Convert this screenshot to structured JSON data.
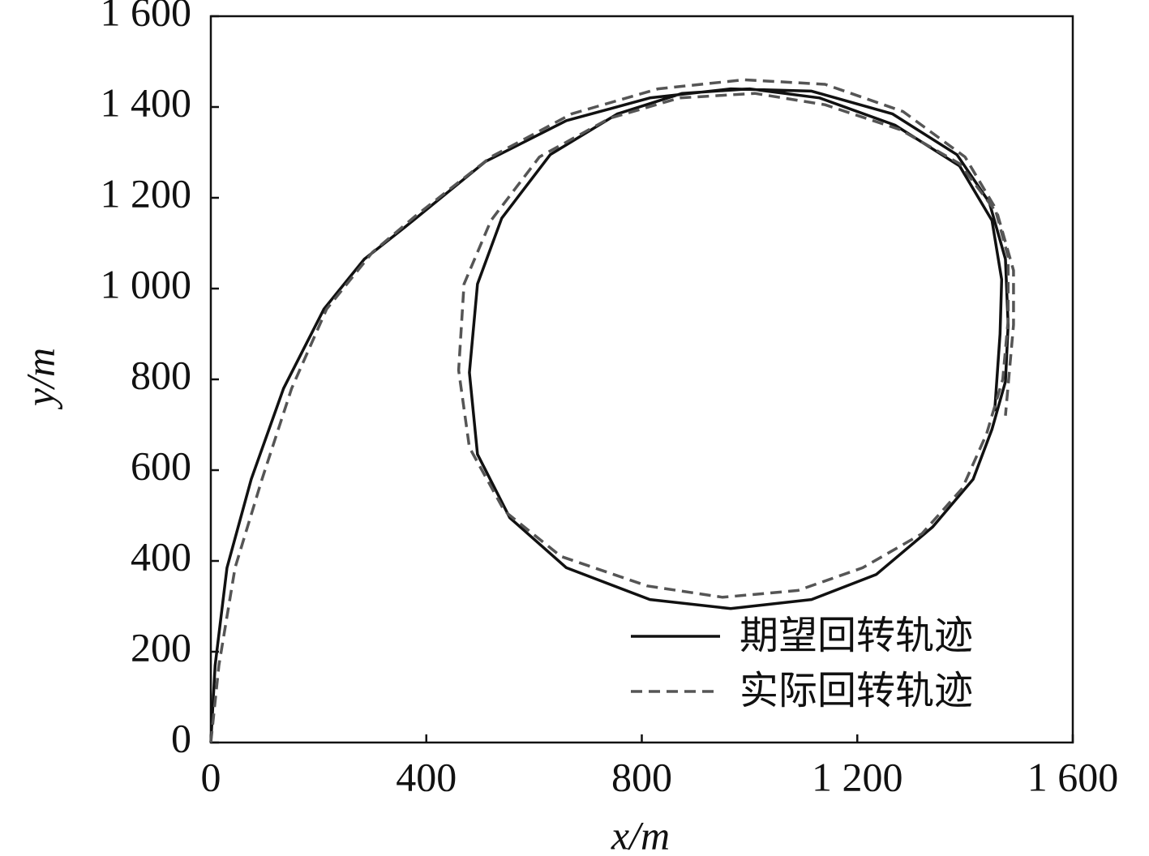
{
  "chart_data": {
    "type": "line",
    "x_label": "x/m",
    "y_label": "y/m",
    "xlim": [
      0,
      1600
    ],
    "ylim": [
      0,
      1600
    ],
    "xticks": [
      0,
      400,
      800,
      {
        "value": 1200,
        "label": "1 200"
      },
      {
        "value": 1600,
        "label": "1 600"
      }
    ],
    "yticks": [
      0,
      200,
      400,
      600,
      800,
      {
        "value": 1000,
        "label": "1 000"
      },
      {
        "value": 1200,
        "label": "1 200"
      },
      {
        "value": 1400,
        "label": "1 400"
      },
      {
        "value": 1600,
        "label": "1 600"
      }
    ],
    "legend": "lower-right",
    "series": [
      {
        "name": "期望回转轨迹",
        "color": "#111111",
        "dash": "solid",
        "x": [
          0,
          8,
          30,
          75,
          135,
          210,
          285,
          360,
          510,
          660,
          815,
          965,
          1115,
          1265,
          1385,
          1445,
          1475,
          1480,
          1475,
          1450,
          1415,
          1340,
          1235,
          1115,
          965,
          815,
          660,
          555,
          495,
          480,
          495,
          540,
          630,
          755,
          875,
          1000,
          1130,
          1270,
          1390,
          1450,
          1468,
          1465,
          1455
        ],
        "values": [
          0,
          170,
          385,
          580,
          780,
          955,
          1065,
          1135,
          1280,
          1370,
          1420,
          1440,
          1435,
          1385,
          1295,
          1190,
          1065,
          920,
          795,
          690,
          580,
          475,
          370,
          315,
          295,
          315,
          385,
          495,
          635,
          815,
          1010,
          1155,
          1295,
          1385,
          1430,
          1440,
          1420,
          1360,
          1270,
          1150,
          1020,
          900,
          730
        ]
      },
      {
        "name": "实际回转轨迹",
        "color": "#555555",
        "dash": "dashed",
        "x": [
          0,
          15,
          45,
          95,
          150,
          215,
          300,
          380,
          520,
          670,
          830,
          990,
          1140,
          1285,
          1400,
          1455,
          1480,
          1480,
          1470,
          1440,
          1395,
          1320,
          1210,
          1090,
          950,
          810,
          650,
          545,
          480,
          460,
          470,
          520,
          610,
          740,
          870,
          1010,
          1140,
          1280,
          1390,
          1460,
          1490,
          1490,
          1475
        ],
        "values": [
          0,
          170,
          385,
          580,
          780,
          955,
          1080,
          1160,
          1290,
          1385,
          1440,
          1460,
          1450,
          1390,
          1290,
          1180,
          1070,
          930,
          800,
          680,
          560,
          460,
          385,
          335,
          320,
          345,
          410,
          510,
          650,
          820,
          1010,
          1150,
          1290,
          1375,
          1420,
          1430,
          1405,
          1350,
          1275,
          1165,
          1040,
          920,
          720
        ]
      }
    ]
  }
}
